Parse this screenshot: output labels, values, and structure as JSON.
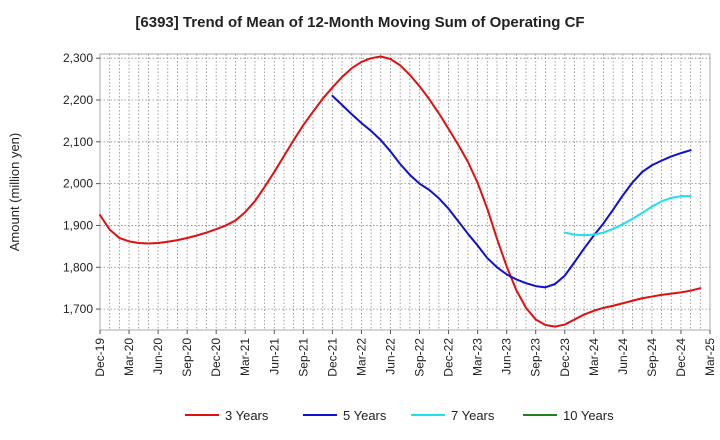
{
  "chart_data": {
    "type": "line",
    "title": "[6393]  Trend of Mean of 12-Month Moving Sum of Operating CF",
    "xlabel": "",
    "ylabel": "Amount (million yen)",
    "ylim": [
      1650,
      2310
    ],
    "yticks": [
      1700,
      1800,
      1900,
      2000,
      2100,
      2200,
      2300
    ],
    "ytick_labels": [
      "1,700",
      "1,800",
      "1,900",
      "2,000",
      "2,100",
      "2,200",
      "2,300"
    ],
    "xticks": [
      "Dec-19",
      "Mar-20",
      "Jun-20",
      "Sep-20",
      "Dec-20",
      "Mar-21",
      "Jun-21",
      "Sep-21",
      "Dec-21",
      "Mar-22",
      "Jun-22",
      "Sep-22",
      "Dec-22",
      "Mar-23",
      "Jun-23",
      "Sep-23",
      "Dec-23",
      "Mar-24",
      "Jun-24",
      "Sep-24",
      "Dec-24",
      "Mar-25"
    ],
    "x_start": "Dec-19",
    "x_end": "Mar-25",
    "grid": true,
    "legend_position": "bottom",
    "series": [
      {
        "name": "3 Years",
        "color": "#e01010",
        "start_month": 0,
        "values": [
          1925,
          1890,
          1870,
          1862,
          1858,
          1857,
          1858,
          1861,
          1865,
          1870,
          1876,
          1883,
          1891,
          1900,
          1912,
          1932,
          1958,
          1992,
          2028,
          2066,
          2104,
          2140,
          2172,
          2203,
          2230,
          2255,
          2276,
          2291,
          2300,
          2304,
          2298,
          2283,
          2260,
          2233,
          2202,
          2168,
          2131,
          2093,
          2052,
          2002,
          1940,
          1868,
          1802,
          1745,
          1703,
          1675,
          1662,
          1658,
          1663,
          1675,
          1687,
          1696,
          1703,
          1708,
          1714,
          1720,
          1726,
          1730,
          1734,
          1737,
          1740,
          1744,
          1750
        ]
      },
      {
        "name": "5 Years",
        "color": "#1010d0",
        "start_month": 24,
        "values": [
          2210,
          2188,
          2166,
          2145,
          2126,
          2104,
          2077,
          2047,
          2021,
          2000,
          1985,
          1965,
          1940,
          1910,
          1880,
          1852,
          1822,
          1800,
          1783,
          1771,
          1762,
          1755,
          1752,
          1760,
          1780,
          1812,
          1845,
          1876,
          1905,
          1938,
          1972,
          2003,
          2028,
          2044,
          2055,
          2065,
          2073,
          2080
        ]
      },
      {
        "name": "7 Years",
        "color": "#20e0e8",
        "start_month": 48,
        "values": [
          1883,
          1878,
          1877,
          1878,
          1883,
          1892,
          1903,
          1916,
          1930,
          1945,
          1958,
          1966,
          1970,
          1970
        ]
      },
      {
        "name": "10 Years",
        "color": "#208020",
        "start_month": 0,
        "values": []
      }
    ]
  }
}
